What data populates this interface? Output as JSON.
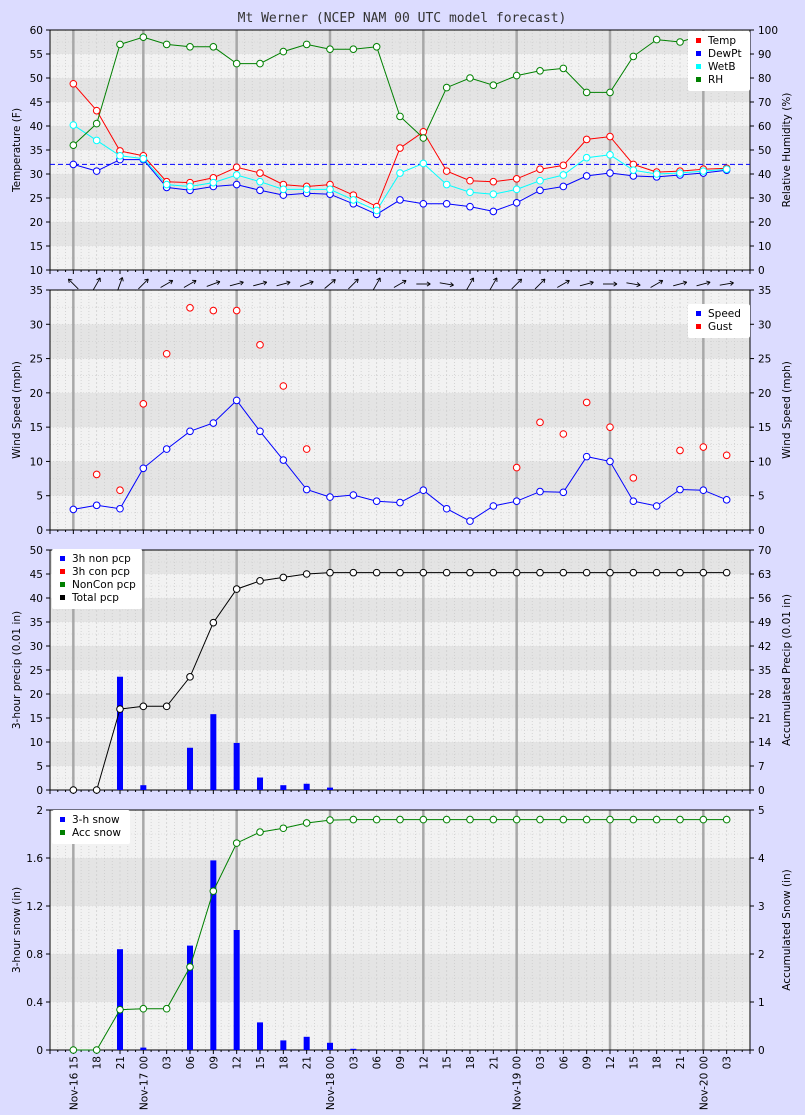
{
  "chart_data": [
    {
      "type": "line",
      "title": "Mt Werner (NCEP NAM 00 UTC model forecast)",
      "ylabel": "Temperature (F)",
      "y2label": "Relative Humidity (%)",
      "ylim": [
        10,
        60
      ],
      "y2lim": [
        0,
        100
      ],
      "reference_line": 32,
      "legend_position": "top-right",
      "grid": true,
      "x": [
        0,
        3,
        6,
        9,
        12,
        15,
        18,
        21,
        24,
        27,
        30,
        33,
        36,
        39,
        42,
        45,
        48,
        51,
        54,
        57,
        60,
        63,
        66,
        69,
        72,
        75,
        78,
        81,
        84
      ],
      "series": [
        {
          "name": "Temp",
          "color": "#ff0000",
          "axis": "left",
          "values": [
            48.8,
            43.2,
            34.8,
            33.8,
            28.4,
            28.2,
            29.2,
            31.4,
            30.2,
            27.8,
            27.4,
            27.8,
            25.6,
            23.2,
            35.4,
            38.8,
            30.6,
            28.6,
            28.4,
            29.0,
            31.0,
            31.8,
            37.2,
            37.8,
            32.0,
            30.4,
            30.6,
            31.0,
            31.2
          ]
        },
        {
          "name": "DewPt",
          "color": "#0000ff",
          "axis": "left",
          "values": [
            32.0,
            30.6,
            33.0,
            33.0,
            27.2,
            26.6,
            27.4,
            27.8,
            26.6,
            25.6,
            26.0,
            25.8,
            23.8,
            21.6,
            24.6,
            23.8,
            23.8,
            23.2,
            22.2,
            24.0,
            26.6,
            27.4,
            29.6,
            30.2,
            29.6,
            29.4,
            29.8,
            30.2,
            30.8
          ]
        },
        {
          "name": "WetB",
          "color": "#00ffff",
          "axis": "left",
          "values": [
            40.2,
            37.0,
            33.8,
            33.2,
            27.8,
            27.4,
            28.2,
            29.8,
            28.4,
            26.8,
            26.8,
            26.8,
            24.6,
            22.4,
            30.2,
            32.2,
            27.8,
            26.2,
            25.8,
            26.8,
            28.6,
            29.8,
            33.4,
            34.0,
            30.8,
            30.0,
            30.2,
            30.6,
            31.0
          ]
        },
        {
          "name": "RH",
          "color": "#008000",
          "axis": "right",
          "values": [
            52,
            61,
            94,
            97,
            94,
            93,
            93,
            86,
            86,
            91,
            94,
            92,
            92,
            93,
            64,
            55,
            76,
            80,
            77,
            81,
            83,
            84,
            74,
            74,
            89,
            96,
            95,
            98,
            96
          ]
        }
      ]
    },
    {
      "type": "line",
      "ylabel": "Wind Speed (mph)",
      "y2label": "Wind Speed (mph)",
      "ylim": [
        0,
        35
      ],
      "legend_position": "top-right",
      "grid": true,
      "x": [
        0,
        3,
        6,
        9,
        12,
        15,
        18,
        21,
        24,
        27,
        30,
        33,
        36,
        39,
        42,
        45,
        48,
        51,
        54,
        57,
        60,
        63,
        66,
        69,
        72,
        75,
        78,
        81,
        84
      ],
      "wind_direction_deg": [
        315,
        30,
        20,
        45,
        60,
        60,
        70,
        75,
        75,
        75,
        70,
        50,
        45,
        30,
        60,
        90,
        100,
        30,
        30,
        45,
        45,
        60,
        75,
        90,
        100,
        60,
        75,
        75,
        80
      ],
      "series": [
        {
          "name": "Speed",
          "color": "#0000ff",
          "values": [
            3.0,
            3.6,
            3.1,
            9.0,
            11.8,
            14.4,
            15.6,
            18.9,
            14.4,
            10.2,
            5.9,
            4.8,
            5.1,
            4.2,
            4.0,
            5.8,
            3.1,
            1.3,
            3.5,
            4.2,
            5.6,
            5.5,
            10.7,
            10.0,
            4.2,
            3.5,
            5.9,
            5.8,
            4.4
          ]
        },
        {
          "name": "Gust",
          "color": "#ff0000",
          "values": [
            null,
            8.1,
            5.8,
            18.4,
            25.7,
            32.4,
            32.0,
            32.0,
            27.0,
            21.0,
            11.8,
            null,
            null,
            null,
            null,
            null,
            null,
            null,
            null,
            9.1,
            15.7,
            14.0,
            18.6,
            15.0,
            7.6,
            null,
            11.6,
            12.1,
            10.9
          ]
        }
      ]
    },
    {
      "type": "bar",
      "ylabel": "3-hour precip (0.01 in)",
      "y2label": "Accumulated Precip (0.01 in)",
      "ylim": [
        0,
        50
      ],
      "y2lim": [
        0,
        70
      ],
      "legend_position": "top-left",
      "grid": true,
      "x": [
        0,
        3,
        6,
        9,
        12,
        15,
        18,
        21,
        24,
        27,
        30,
        33,
        36,
        39,
        42,
        45,
        48,
        51,
        54,
        57,
        60,
        63,
        66,
        69,
        72,
        75,
        78,
        81,
        84
      ],
      "series": [
        {
          "name": "3h non pcp",
          "color": "#0000ff",
          "values": [
            0,
            0,
            23.6,
            1.0,
            0,
            8.8,
            15.8,
            9.8,
            2.6,
            1.0,
            1.3,
            0.5,
            0,
            0,
            0,
            0,
            0,
            0,
            0,
            0,
            0,
            0,
            0,
            0,
            0,
            0,
            0,
            0,
            0
          ]
        },
        {
          "name": "3h con pcp",
          "color": "#ff0000",
          "values": [
            0,
            0,
            0,
            0,
            0,
            0,
            0,
            0,
            0,
            0,
            0,
            0,
            0,
            0,
            0,
            0,
            0,
            0,
            0,
            0,
            0,
            0,
            0,
            0,
            0,
            0,
            0,
            0,
            0
          ]
        },
        {
          "name": "NonCon pcp",
          "color": "#008000",
          "values": [
            0,
            0,
            23.6,
            24.4,
            24.4,
            33.0,
            48.8,
            58.6,
            61.0,
            62.0,
            63.0,
            63.4,
            63.4,
            63.4,
            63.4,
            63.4,
            63.4,
            63.4,
            63.4,
            63.4,
            63.4,
            63.4,
            63.4,
            63.4,
            63.4,
            63.4,
            63.4,
            63.4,
            63.4
          ]
        },
        {
          "name": "Total pcp",
          "color": "#000000",
          "values": [
            0,
            0,
            23.6,
            24.4,
            24.4,
            33.0,
            48.8,
            58.6,
            61.0,
            62.0,
            63.0,
            63.4,
            63.4,
            63.4,
            63.4,
            63.4,
            63.4,
            63.4,
            63.4,
            63.4,
            63.4,
            63.4,
            63.4,
            63.4,
            63.4,
            63.4,
            63.4,
            63.4,
            63.4
          ]
        }
      ]
    },
    {
      "type": "bar",
      "ylabel": "3-hour snow (in)",
      "y2label": "Accumulated Snow (in)",
      "ylim": [
        0,
        2
      ],
      "y2lim": [
        0,
        5
      ],
      "legend_position": "top-left",
      "grid": true,
      "x": [
        0,
        3,
        6,
        9,
        12,
        15,
        18,
        21,
        24,
        27,
        30,
        33,
        36,
        39,
        42,
        45,
        48,
        51,
        54,
        57,
        60,
        63,
        66,
        69,
        72,
        75,
        78,
        81,
        84
      ],
      "series": [
        {
          "name": "3-h snow",
          "color": "#0000ff",
          "values": [
            0,
            0,
            0.84,
            0.02,
            0,
            0.87,
            1.58,
            1.0,
            0.23,
            0.08,
            0.11,
            0.06,
            0.01,
            0,
            0,
            0,
            0,
            0,
            0,
            0,
            0,
            0,
            0,
            0,
            0,
            0,
            0,
            0,
            0
          ]
        },
        {
          "name": "Acc snow",
          "color": "#008000",
          "values": [
            0,
            0,
            0.84,
            0.86,
            0.86,
            1.73,
            3.31,
            4.31,
            4.54,
            4.62,
            4.73,
            4.79,
            4.8,
            4.8,
            4.8,
            4.8,
            4.8,
            4.8,
            4.8,
            4.8,
            4.8,
            4.8,
            4.8,
            4.8,
            4.8,
            4.8,
            4.8,
            4.8,
            4.8
          ]
        }
      ]
    }
  ],
  "x_axis": {
    "ticks": [
      {
        "h": 0,
        "label": "Nov-16 15"
      },
      {
        "h": 3,
        "label": "18"
      },
      {
        "h": 6,
        "label": "21"
      },
      {
        "h": 9,
        "label": "Nov-17 00"
      },
      {
        "h": 12,
        "label": "03"
      },
      {
        "h": 15,
        "label": "06"
      },
      {
        "h": 18,
        "label": "09"
      },
      {
        "h": 21,
        "label": "12"
      },
      {
        "h": 24,
        "label": "15"
      },
      {
        "h": 27,
        "label": "18"
      },
      {
        "h": 30,
        "label": "21"
      },
      {
        "h": 33,
        "label": "Nov-18 00"
      },
      {
        "h": 36,
        "label": "03"
      },
      {
        "h": 39,
        "label": "06"
      },
      {
        "h": 42,
        "label": "09"
      },
      {
        "h": 45,
        "label": "12"
      },
      {
        "h": 48,
        "label": "15"
      },
      {
        "h": 51,
        "label": "18"
      },
      {
        "h": 54,
        "label": "21"
      },
      {
        "h": 57,
        "label": "Nov-19 00"
      },
      {
        "h": 60,
        "label": "03"
      },
      {
        "h": 63,
        "label": "06"
      },
      {
        "h": 66,
        "label": "09"
      },
      {
        "h": 69,
        "label": "12"
      },
      {
        "h": 72,
        "label": "15"
      },
      {
        "h": 75,
        "label": "18"
      },
      {
        "h": 78,
        "label": "21"
      },
      {
        "h": 81,
        "label": "Nov-20 00"
      },
      {
        "h": 84,
        "label": "03"
      }
    ]
  },
  "colors": {
    "background": "#dcdcff",
    "plot": "#f2f2f2",
    "band": "#e2e2e2"
  }
}
